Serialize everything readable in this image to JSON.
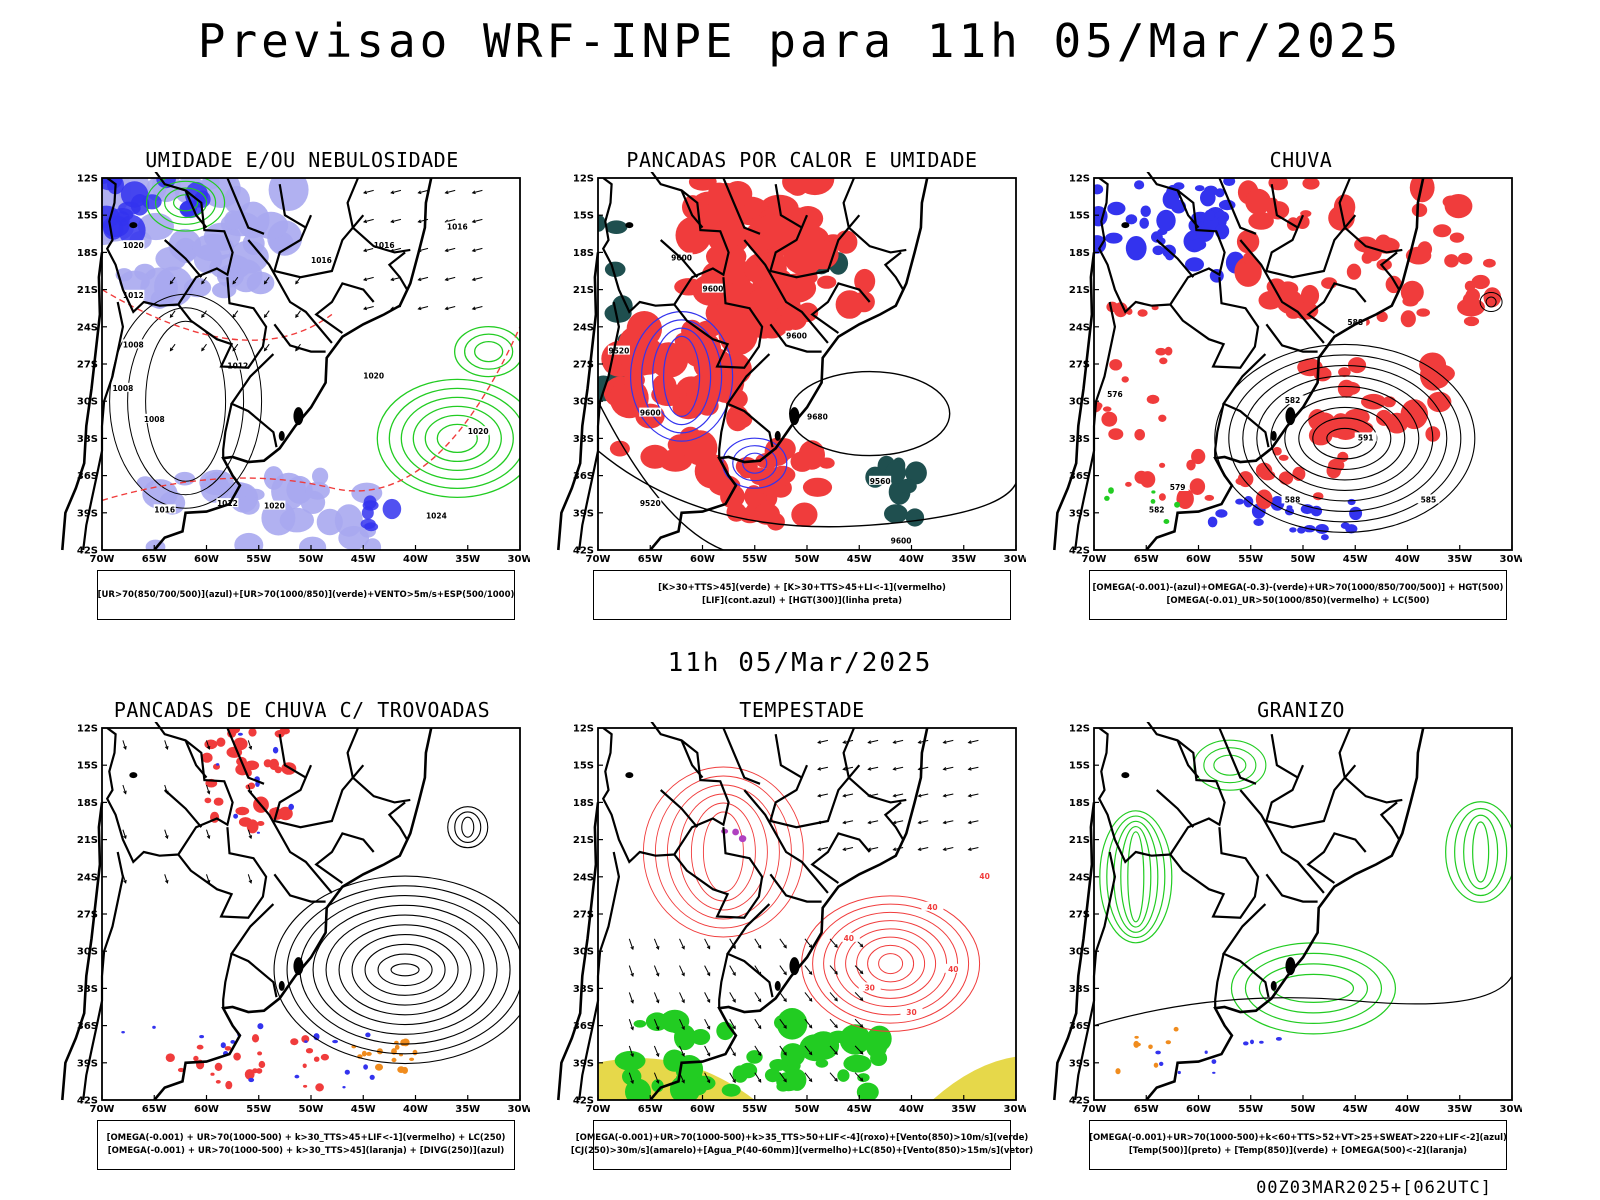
{
  "header": {
    "title": "Previsao WRF-INPE  para 11h 05/Mar/2025"
  },
  "mid_date": "11h 05/Mar/2025",
  "footer": "00Z03MAR2025+[062UTC]",
  "axes": {
    "lat_ticks": [
      "12S",
      "15S",
      "18S",
      "21S",
      "24S",
      "27S",
      "30S",
      "33S",
      "36S",
      "39S",
      "42S"
    ],
    "lon_ticks": [
      "70W",
      "65W",
      "60W",
      "55W",
      "50W",
      "45W",
      "40W",
      "35W",
      "30W"
    ]
  },
  "colors": {
    "blue": "#3333ee",
    "lightblue": "#a8a8f0",
    "green": "#22cc22",
    "red": "#f03c3c",
    "darkteal": "#1f4f4f",
    "orange": "#f08c1e",
    "yellow": "#e6d84a",
    "purple": "#b040c0",
    "black": "#000000"
  },
  "panels": [
    {
      "title": "UMIDADE E/OU NEBULOSIDADE",
      "legend": [
        "[UR>70(850/700/500)](azul)+[UR>70(1000/850)](verde)+VENTO>5m/s+ESP(500/1000)"
      ],
      "labels": [
        "1016",
        "1016",
        "1016",
        "1020",
        "1012",
        "1008",
        "1012",
        "1008",
        "1012",
        "1016",
        "1020",
        "1020",
        "1020",
        "1024",
        "1008"
      ]
    },
    {
      "title": "PANCADAS POR CALOR E UMIDADE",
      "legend": [
        "[K>30+TTS>45](verde) + [K>30+TTS>45+LI<-1](vermelho)",
        "[LIF](cont.azul) + [HGT(300)](linha preta)"
      ],
      "labels": [
        "9600",
        "9600",
        "9600",
        "9520",
        "9600",
        "9680",
        "9560",
        "9520",
        "9600"
      ]
    },
    {
      "title": "CHUVA",
      "legend": [
        "[OMEGA(-0.001)-(azul)+OMEGA(-0.3)-(verde)+UR>70(1000/850/700/500)] + HGT(500)",
        "[OMEGA(-0.01)_UR>50(1000/850)(vermelho) + LC(500)"
      ],
      "labels": [
        "588",
        "582",
        "576",
        "582",
        "588",
        "591",
        "585",
        "579"
      ]
    },
    {
      "title": "PANCADAS DE CHUVA C/ TROVOADAS",
      "legend": [
        "[OMEGA(-0.001) + UR>70(1000-500) + k>30_TTS>45+LIF<-1](vermelho) + LC(250)",
        "[OMEGA(-0.001) + UR>70(1000-500) + k>30_TTS>45](laranja) + [DIVG(250)](azul)"
      ],
      "labels": []
    },
    {
      "title": "TEMPESTADE",
      "legend": [
        "[OMEGA(-0.001)+UR>70(1000-500)+k>35_TTS>50+LIF<-4](roxo)+[Vento(850)>10m/s](verde)",
        "[CJ(250)>30m/s](amarelo)+[Agua_P(40-60mm)](vermelho)+LC(850)+[Vento(850)>15m/s](vetor)"
      ],
      "labels": [
        "40",
        "40",
        "40",
        "40",
        "30",
        "30"
      ]
    },
    {
      "title": "GRANIZO",
      "legend": [
        "[OMEGA(-0.001)+UR>70(1000-500)+k<60+TTS>52+VT>25+SWEAT>220+LIF<-2](azul)",
        "[Temp(500)](preto) + [Temp(850)](verde) + [OMEGA(500)<-2](laranja)"
      ],
      "labels": []
    }
  ],
  "chart_data": [
    {
      "type": "map",
      "title": "UMIDADE E/OU NEBULOSIDADE",
      "lat_range": [
        "12S",
        "42S"
      ],
      "lon_range": [
        "70W",
        "30W"
      ],
      "contours": [
        1008,
        1012,
        1016,
        1020,
        1024
      ],
      "contour_variable": "pressure (hPa)"
    },
    {
      "type": "map",
      "title": "PANCADAS POR CALOR E UMIDADE",
      "lat_range": [
        "12S",
        "42S"
      ],
      "lon_range": [
        "70W",
        "30W"
      ],
      "contours": [
        9520,
        9560,
        9600,
        9680
      ],
      "contour_variable": "HGT(300)"
    },
    {
      "type": "map",
      "title": "CHUVA",
      "lat_range": [
        "12S",
        "42S"
      ],
      "lon_range": [
        "70W",
        "30W"
      ],
      "contours": [
        576,
        579,
        582,
        585,
        588,
        591
      ],
      "contour_variable": "HGT(500)"
    },
    {
      "type": "map",
      "title": "PANCADAS DE CHUVA C/ TROVOADAS",
      "lat_range": [
        "12S",
        "42S"
      ],
      "lon_range": [
        "70W",
        "30W"
      ],
      "contour_variable": "LC(250) streamlines"
    },
    {
      "type": "map",
      "title": "TEMPESTADE",
      "lat_range": [
        "12S",
        "42S"
      ],
      "lon_range": [
        "70W",
        "30W"
      ],
      "contours": [
        30,
        40
      ],
      "contour_variable": "Agua_P / LC(850)"
    },
    {
      "type": "map",
      "title": "GRANIZO",
      "lat_range": [
        "12S",
        "42S"
      ],
      "lon_range": [
        "70W",
        "30W"
      ],
      "contour_variable": "Temp(500) / Temp(850)"
    }
  ]
}
